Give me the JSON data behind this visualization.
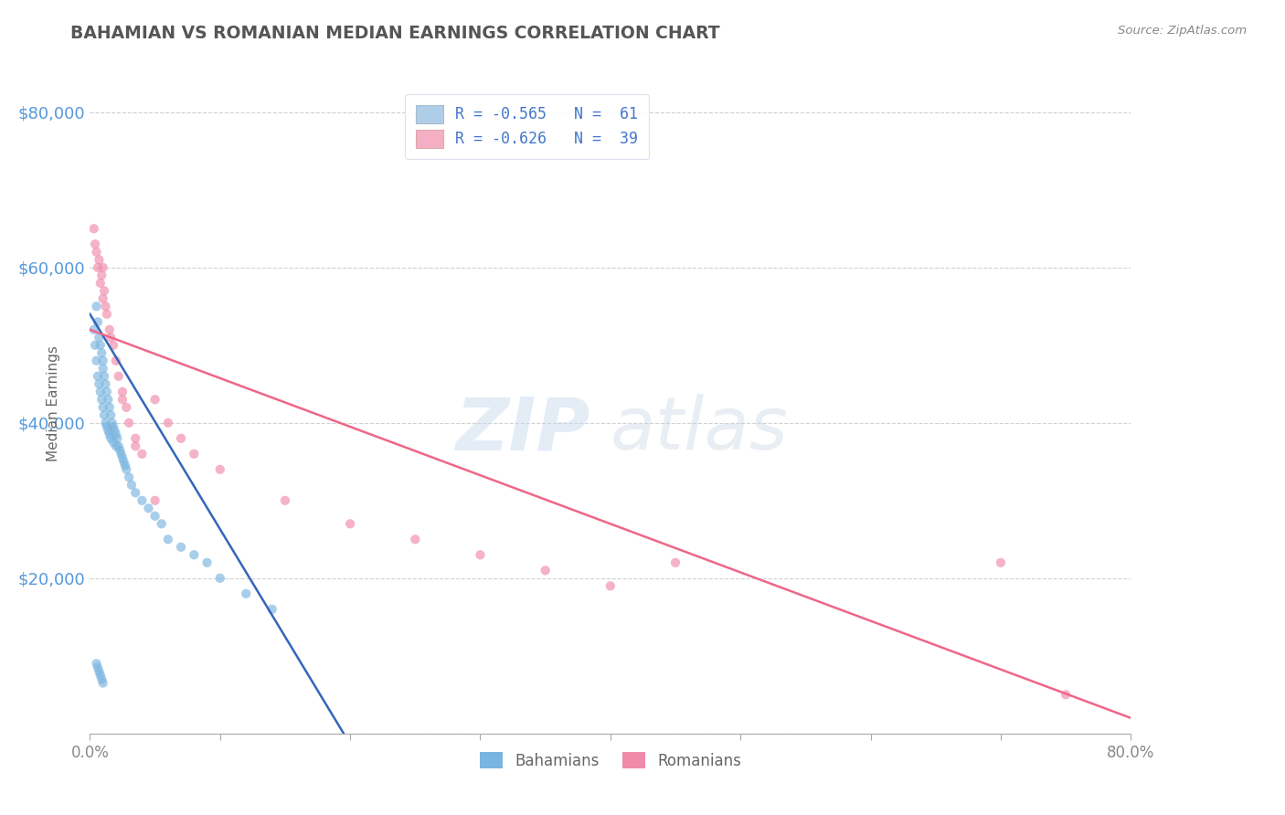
{
  "title": "BAHAMIAN VS ROMANIAN MEDIAN EARNINGS CORRELATION CHART",
  "source_text": "Source: ZipAtlas.com",
  "ylabel": "Median Earnings",
  "legend_line1": "R = -0.565   N =  61",
  "legend_line2": "R = -0.626   N =  39",
  "legend_color1": "#aecde8",
  "legend_color2": "#f4afc4",
  "bahamian_color": "#7ab4e0",
  "romanian_color": "#f08aaa",
  "bahamian_trendline_color": "#3366bb",
  "romanian_trendline_color": "#ee6688",
  "title_color": "#555555",
  "source_color": "#888888",
  "ylabel_color": "#666666",
  "axis_tick_color": "#5599dd",
  "grid_color": "#cccccc",
  "watermark_zip_color": "#c5d8ed",
  "watermark_atlas_color": "#c0d0e0",
  "background": "#ffffff",
  "xlim": [
    0,
    80
  ],
  "ylim": [
    0,
    85000
  ],
  "xticks": [
    0,
    10,
    20,
    30,
    40,
    50,
    60,
    70,
    80
  ],
  "xtick_labels": [
    "0.0%",
    "",
    "",
    "",
    "",
    "",
    "",
    "",
    "80.0%"
  ],
  "yticks": [
    0,
    20000,
    40000,
    60000,
    80000
  ],
  "ytick_labels": [
    "",
    "$20,000",
    "$40,000",
    "$60,000",
    "$80,000"
  ],
  "bahamian_x": [
    0.3,
    0.4,
    0.5,
    0.5,
    0.6,
    0.6,
    0.7,
    0.7,
    0.8,
    0.8,
    0.9,
    0.9,
    1.0,
    1.0,
    1.0,
    1.1,
    1.1,
    1.2,
    1.2,
    1.3,
    1.3,
    1.4,
    1.4,
    1.5,
    1.5,
    1.6,
    1.6,
    1.7,
    1.8,
    1.8,
    1.9,
    2.0,
    2.0,
    2.1,
    2.2,
    2.3,
    2.4,
    2.5,
    2.6,
    2.7,
    2.8,
    3.0,
    3.2,
    3.5,
    4.0,
    4.5,
    5.0,
    5.5,
    6.0,
    7.0,
    8.0,
    9.0,
    10.0,
    12.0,
    14.0,
    0.5,
    0.6,
    0.7,
    0.8,
    0.9,
    1.0
  ],
  "bahamian_y": [
    52000,
    50000,
    55000,
    48000,
    53000,
    46000,
    51000,
    45000,
    50000,
    44000,
    49000,
    43000,
    48000,
    47000,
    42000,
    46000,
    41000,
    45000,
    40000,
    44000,
    39500,
    43000,
    39000,
    42000,
    38500,
    41000,
    38000,
    40000,
    39500,
    37500,
    39000,
    38500,
    37000,
    38000,
    37000,
    36500,
    36000,
    35500,
    35000,
    34500,
    34000,
    33000,
    32000,
    31000,
    30000,
    29000,
    28000,
    27000,
    25000,
    24000,
    23000,
    22000,
    20000,
    18000,
    16000,
    9000,
    8500,
    8000,
    7500,
    7000,
    6500
  ],
  "romanian_x": [
    0.3,
    0.5,
    0.6,
    0.8,
    1.0,
    1.0,
    1.2,
    1.5,
    1.8,
    2.0,
    2.2,
    2.5,
    2.8,
    3.0,
    3.5,
    4.0,
    5.0,
    6.0,
    7.0,
    8.0,
    10.0,
    15.0,
    20.0,
    25.0,
    30.0,
    35.0,
    40.0,
    45.0,
    0.4,
    0.7,
    0.9,
    1.1,
    1.3,
    1.6,
    2.5,
    3.5,
    5.0,
    70.0,
    75.0
  ],
  "romanian_y": [
    65000,
    62000,
    60000,
    58000,
    56000,
    60000,
    55000,
    52000,
    50000,
    48000,
    46000,
    44000,
    42000,
    40000,
    38000,
    36000,
    43000,
    40000,
    38000,
    36000,
    34000,
    30000,
    27000,
    25000,
    23000,
    21000,
    19000,
    22000,
    63000,
    61000,
    59000,
    57000,
    54000,
    51000,
    43000,
    37000,
    30000,
    22000,
    5000
  ],
  "bah_trend_x0": 0,
  "bah_trend_y0": 54000,
  "bah_trend_x1": 19.5,
  "bah_trend_y1": 0,
  "rom_trend_x0": 0,
  "rom_trend_y0": 52000,
  "rom_trend_x1": 80,
  "rom_trend_y1": 2000
}
